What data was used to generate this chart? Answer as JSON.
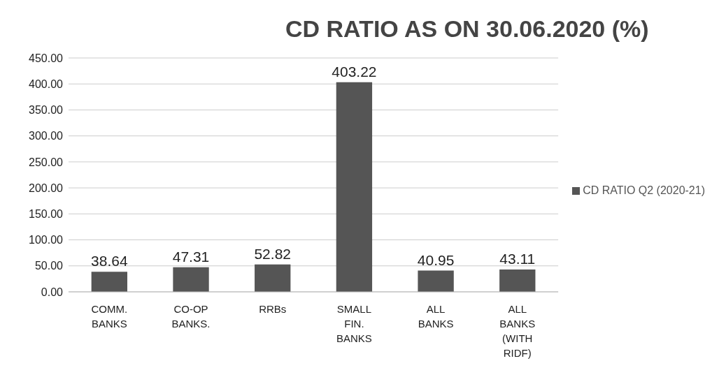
{
  "chart_data": {
    "type": "bar",
    "title": "CD RATIO AS ON 30.06.2020 (%)",
    "categories": [
      "COMM. BANKS",
      "CO-OP BANKS.",
      "RRBs",
      "SMALL FIN. BANKS",
      "ALL BANKS",
      "ALL BANKS (WITH RIDF)"
    ],
    "series": [
      {
        "name": "CD RATIO Q2 (2020-21)",
        "color": "#555555",
        "values": [
          38.64,
          47.31,
          52.82,
          403.22,
          40.95,
          43.11
        ]
      }
    ],
    "ylim": [
      0,
      450
    ],
    "yticks": [
      {
        "value": 0,
        "label": "0.00"
      },
      {
        "value": 50,
        "label": "50.00"
      },
      {
        "value": 100,
        "label": "100.00"
      },
      {
        "value": 150,
        "label": "150.00"
      },
      {
        "value": 200,
        "label": "200.00"
      },
      {
        "value": 250,
        "label": "250.00"
      },
      {
        "value": 300,
        "label": "300.00"
      },
      {
        "value": 350,
        "label": "350.00"
      },
      {
        "value": 400,
        "label": "400.00"
      },
      {
        "value": 450,
        "label": "450.00"
      }
    ],
    "grid": "y",
    "legend": "right",
    "data_labels": true
  }
}
